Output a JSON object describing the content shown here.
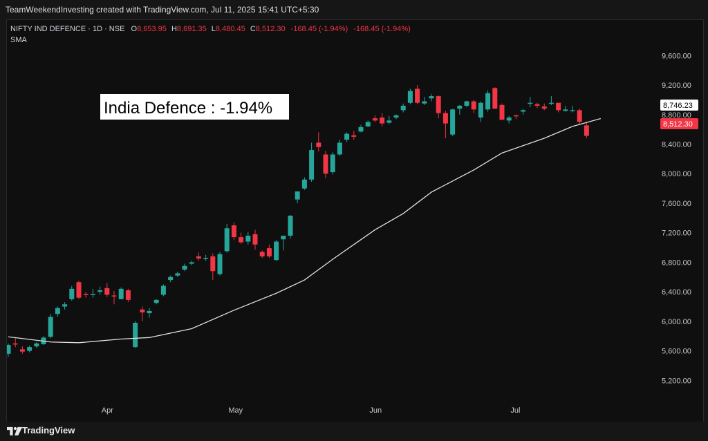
{
  "header": {
    "caption": "TeamWeekendInvesting created with TradingView.com, Jul 11, 2025 15:41 UTC+5:30"
  },
  "legend": {
    "symbol": "NIFTY IND DEFENCE · 1D · NSE",
    "ohlc_o_label": "O",
    "ohlc_o": "8,653.95",
    "ohlc_h_label": "H",
    "ohlc_h": "8,691.35",
    "ohlc_l_label": "L",
    "ohlc_l": "8,480.45",
    "ohlc_c_label": "C",
    "ohlc_c": "8,512.30",
    "change": "-168.45 (-1.94%)",
    "change2": "-168.45 (-1.94%)",
    "indicator": "SMA"
  },
  "annotation": {
    "text": "India Defence : -1.94%"
  },
  "price_tags": {
    "sma_value": "8,746.23",
    "last_price": "8,512.30"
  },
  "footer": {
    "brand": "TradingView"
  },
  "colors": {
    "up": "#26a69a",
    "down": "#f23645",
    "sma": "#e0e0e0",
    "background": "#0f0f0f"
  },
  "chart_data": {
    "type": "candlestick",
    "title": "NIFTY IND DEFENCE · 1D · NSE",
    "ylim": [
      4800,
      9800
    ],
    "y_ticks": [
      5200,
      5600,
      6000,
      6400,
      6800,
      7200,
      7600,
      8000,
      8400,
      8800,
      9200,
      9600
    ],
    "y_tick_labels": [
      "5,200.00",
      "5,600.00",
      "6,000.00",
      "6,400.00",
      "6,800.00",
      "7,200.00",
      "7,600.00",
      "8,000.00",
      "8,400.00",
      "8,800.00",
      "9,200.00",
      "9,600.00"
    ],
    "x_labels": [
      {
        "label": "Apr",
        "index": 14
      },
      {
        "label": "May",
        "index": 32
      },
      {
        "label": "Jun",
        "index": 52
      },
      {
        "label": "Jul",
        "index": 72
      }
    ],
    "grid": false,
    "candles": [
      [
        5560,
        5700,
        5520,
        5680
      ],
      [
        5700,
        5770,
        5650,
        5690
      ],
      [
        5620,
        5660,
        5560,
        5590
      ],
      [
        5600,
        5670,
        5580,
        5650
      ],
      [
        5660,
        5720,
        5640,
        5700
      ],
      [
        5690,
        5800,
        5680,
        5780
      ],
      [
        5790,
        6100,
        5770,
        6060
      ],
      [
        6100,
        6200,
        6060,
        6180
      ],
      [
        6200,
        6260,
        6160,
        6230
      ],
      [
        6300,
        6480,
        6280,
        6440
      ],
      [
        6530,
        6550,
        6300,
        6320
      ],
      [
        6370,
        6400,
        6320,
        6360
      ],
      [
        6360,
        6440,
        6320,
        6370
      ],
      [
        6400,
        6470,
        6360,
        6420
      ],
      [
        6450,
        6520,
        6330,
        6360
      ],
      [
        6350,
        6410,
        6230,
        6340
      ],
      [
        6300,
        6460,
        6300,
        6440
      ],
      [
        6420,
        6440,
        6260,
        6290
      ],
      [
        5650,
        6000,
        5640,
        5980
      ],
      [
        6160,
        6200,
        6000,
        6120
      ],
      [
        6110,
        6180,
        6050,
        6140
      ],
      [
        6250,
        6300,
        6230,
        6290
      ],
      [
        6360,
        6500,
        6340,
        6480
      ],
      [
        6560,
        6620,
        6530,
        6600
      ],
      [
        6620,
        6670,
        6600,
        6650
      ],
      [
        6700,
        6780,
        6680,
        6750
      ],
      [
        6780,
        6820,
        6760,
        6800
      ],
      [
        6880,
        6930,
        6820,
        6850
      ],
      [
        6860,
        6900,
        6820,
        6860
      ],
      [
        6880,
        6920,
        6560,
        6680
      ],
      [
        6640,
        6940,
        6620,
        6910
      ],
      [
        6950,
        7320,
        6930,
        7260
      ],
      [
        7300,
        7340,
        7100,
        7140
      ],
      [
        7140,
        7200,
        7050,
        7070
      ],
      [
        7080,
        7210,
        7040,
        7160
      ],
      [
        7180,
        7240,
        6970,
        7040
      ],
      [
        6940,
        6960,
        6860,
        6880
      ],
      [
        6990,
        7040,
        6860,
        6880
      ],
      [
        6830,
        7100,
        6820,
        7080
      ],
      [
        7110,
        7120,
        6960,
        7160
      ],
      [
        7160,
        7440,
        7120,
        7430
      ],
      [
        7650,
        7760,
        7600,
        7760
      ],
      [
        7800,
        7950,
        7780,
        7920
      ],
      [
        7920,
        8420,
        7890,
        8320
      ],
      [
        8420,
        8560,
        8300,
        8360
      ],
      [
        8260,
        8310,
        7940,
        8000
      ],
      [
        8020,
        8290,
        7990,
        8260
      ],
      [
        8260,
        8460,
        8240,
        8420
      ],
      [
        8460,
        8560,
        8430,
        8540
      ],
      [
        8520,
        8580,
        8460,
        8500
      ],
      [
        8570,
        8660,
        8560,
        8630
      ],
      [
        8640,
        8720,
        8630,
        8700
      ],
      [
        8750,
        8790,
        8700,
        8720
      ],
      [
        8760,
        8820,
        8640,
        8680
      ],
      [
        8690,
        8780,
        8670,
        8720
      ],
      [
        8760,
        8800,
        8740,
        8790
      ],
      [
        8860,
        8950,
        8830,
        8920
      ],
      [
        8960,
        9150,
        8940,
        9120
      ],
      [
        9150,
        9200,
        8940,
        8960
      ],
      [
        8950,
        9040,
        8930,
        8980
      ],
      [
        9020,
        9080,
        8980,
        9050
      ],
      [
        9050,
        9060,
        8750,
        8820
      ],
      [
        8820,
        8850,
        8480,
        8680
      ],
      [
        8530,
        8880,
        8510,
        8870
      ],
      [
        8880,
        8930,
        8800,
        8920
      ],
      [
        8920,
        8990,
        8900,
        8980
      ],
      [
        8980,
        9000,
        8820,
        8870
      ],
      [
        8760,
        8980,
        8700,
        8960
      ],
      [
        8870,
        9130,
        8840,
        9090
      ],
      [
        9160,
        9170,
        8880,
        8880
      ],
      [
        8930,
        8950,
        8740,
        8730
      ],
      [
        8720,
        8780,
        8680,
        8760
      ],
      [
        8790,
        8800,
        8740,
        8780
      ],
      [
        8840,
        8880,
        8800,
        8860
      ],
      [
        8950,
        9040,
        8900,
        8960
      ],
      [
        8940,
        8960,
        8890,
        8920
      ],
      [
        8910,
        8950,
        8860,
        8880
      ],
      [
        8950,
        9050,
        8930,
        8960
      ],
      [
        8960,
        8960,
        8830,
        8860
      ],
      [
        8850,
        8920,
        8840,
        8870
      ],
      [
        8850,
        8920,
        8830,
        8860
      ],
      [
        8860,
        8880,
        8660,
        8700
      ],
      [
        8653.95,
        8691.35,
        8480.45,
        8512.3
      ]
    ],
    "sma_points": [
      [
        0,
        5790
      ],
      [
        6,
        5720
      ],
      [
        10,
        5710
      ],
      [
        16,
        5760
      ],
      [
        20,
        5780
      ],
      [
        26,
        5900
      ],
      [
        32,
        6150
      ],
      [
        38,
        6380
      ],
      [
        42,
        6560
      ],
      [
        46,
        6840
      ],
      [
        52,
        7240
      ],
      [
        56,
        7460
      ],
      [
        60,
        7750
      ],
      [
        66,
        8050
      ],
      [
        70,
        8280
      ],
      [
        76,
        8480
      ],
      [
        80,
        8640
      ],
      [
        84,
        8746.23
      ]
    ]
  }
}
